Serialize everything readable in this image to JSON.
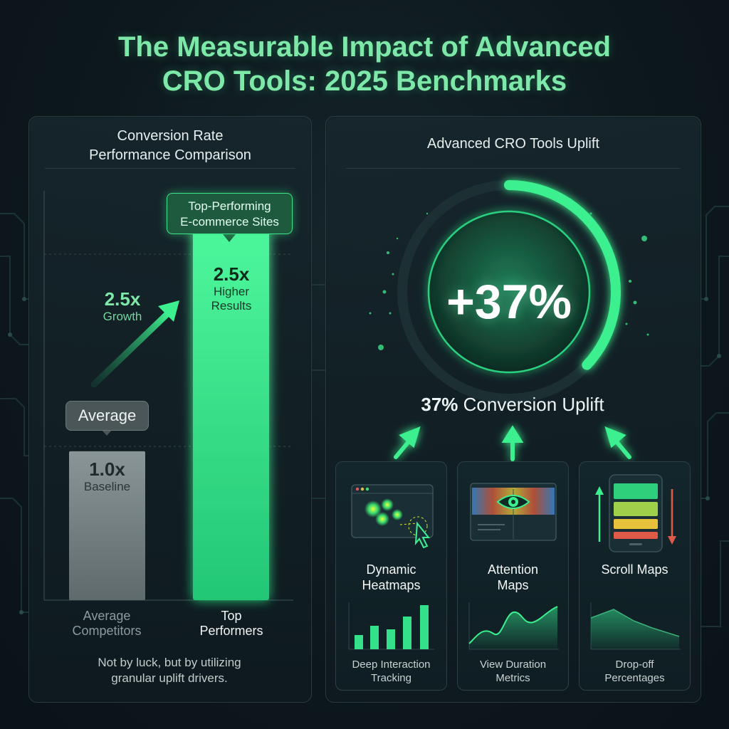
{
  "title": {
    "line1": "The Measurable Impact of Advanced",
    "line2": "CRO Tools: 2025 Benchmarks"
  },
  "left_panel": {
    "title_line1": "Conversion Rate",
    "title_line2": "Performance Comparison",
    "avg_badge": "Average",
    "top_badge_line1": "Top-Performing",
    "top_badge_line2": "E-commerce Sites",
    "growth_value": "2.5x",
    "growth_label": "Growth",
    "footnote_line1": "Not by luck, but by utilizing",
    "footnote_line2": "granular uplift drivers."
  },
  "chart_data": {
    "type": "bar",
    "categories": [
      "Average Competitors",
      "Top Performers"
    ],
    "values": [
      1.0,
      2.5
    ],
    "value_labels": [
      "1.0x",
      "2.5x"
    ],
    "sub_labels": [
      "Baseline",
      "Higher Results"
    ],
    "category_lines": [
      [
        "Average",
        "Competitors"
      ],
      [
        "Top",
        "Performers"
      ]
    ],
    "ylim": [
      0,
      2.75
    ],
    "grid": true,
    "colors": {
      "average": "#7b8688",
      "top": "#3cf08f"
    }
  },
  "right_panel": {
    "title": "Advanced CRO Tools Uplift",
    "gauge_value": "+37%",
    "gauge_fraction": 0.37,
    "caption_bold": "37%",
    "caption_rest": " Conversion Uplift"
  },
  "cards": [
    {
      "title_line1": "Dynamic",
      "title_line2": "Heatmaps",
      "sub_line1": "Deep Interaction",
      "sub_line2": "Tracking",
      "icon": "heatmap-browser-icon",
      "chart": "bar"
    },
    {
      "title_line1": "Attention",
      "title_line2": "Maps",
      "sub_line1": "View Duration",
      "sub_line2": "Metrics",
      "icon": "eye-attention-icon",
      "chart": "area"
    },
    {
      "title_line1": "Scroll Maps",
      "title_line2": "",
      "sub_line1": "Drop-off",
      "sub_line2": "Percentages",
      "icon": "phone-scroll-icon",
      "chart": "decline"
    }
  ],
  "colors": {
    "accent": "#3cf08f",
    "title": "#7ee8a8",
    "background": "#0d181d"
  }
}
